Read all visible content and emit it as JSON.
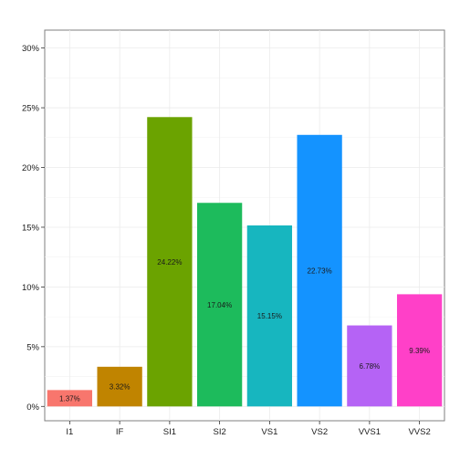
{
  "chart_data": {
    "type": "bar",
    "categories": [
      "I1",
      "IF",
      "SI1",
      "SI2",
      "VS1",
      "VS2",
      "VVS1",
      "VVS2"
    ],
    "values": [
      1.37,
      3.32,
      24.22,
      17.04,
      15.15,
      22.73,
      6.78,
      9.39
    ],
    "value_labels": [
      "1.37%",
      "3.32%",
      "24.22%",
      "17.04%",
      "15.15%",
      "22.73%",
      "6.78%",
      "9.39%"
    ],
    "colors": [
      "#F8766D",
      "#C49A00",
      "#53B400",
      "#00C094",
      "#00B6EB",
      "#A58AFF",
      "#FB61D7",
      "#FB61D7"
    ],
    "bar_colors": [
      "#F8766D",
      "#C08400",
      "#6BA300",
      "#1DBB5C",
      "#17B6BF",
      "#1493FF",
      "#B563F5",
      "#FF40C8"
    ],
    "y_ticks": [
      0,
      5,
      10,
      15,
      20,
      25,
      30
    ],
    "y_tick_labels": [
      "0%",
      "5%",
      "10%",
      "15%",
      "20%",
      "25%",
      "30%"
    ],
    "ylim": [
      -1.2,
      31.5
    ],
    "grid": true,
    "legend": "none",
    "title": "",
    "xlabel": "",
    "ylabel": ""
  }
}
